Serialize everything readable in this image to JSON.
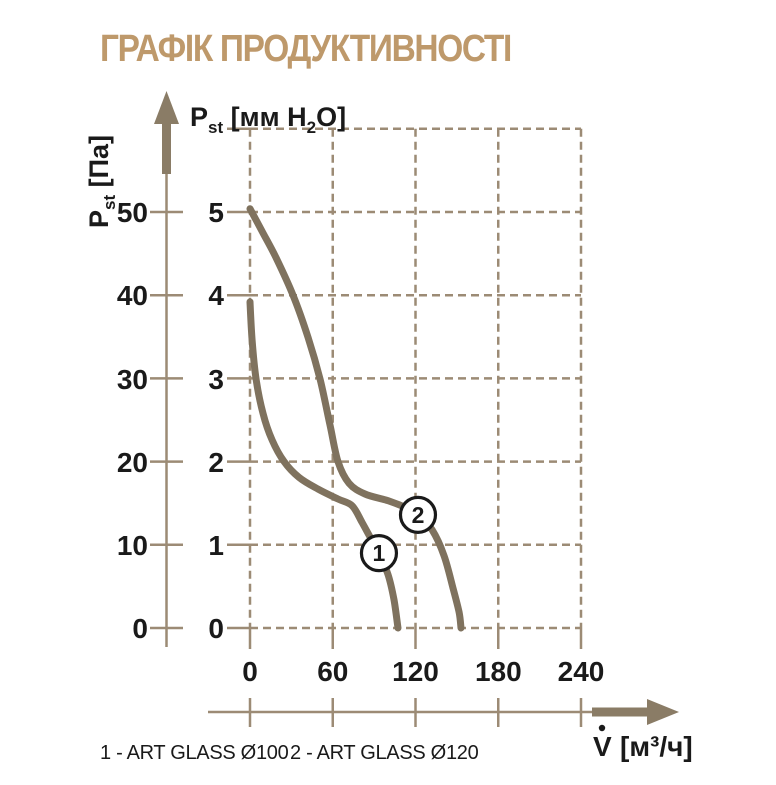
{
  "title": "ГРАФІК ПРОДУКТИВНОСТІ",
  "colors": {
    "title": "#BE996B",
    "curve": "#7F725E",
    "grid": "#9C8B75",
    "arrow": "#8A7C66",
    "text": "#1A1A1A",
    "background": "#FFFFFF"
  },
  "y_axis_left": {
    "name": "P",
    "sub": "st",
    "unit": " [Па]"
  },
  "y_axis_inner": {
    "name": "P",
    "sub": "st",
    "unit_pre": " [мм H",
    "unit_sub": "2",
    "unit_post": "O]"
  },
  "x_axis": {
    "name": "V",
    "unit": "[м³/ч]"
  },
  "legend": {
    "item1": "1 - ART GLASS Ø100",
    "item2": "2 - ART GLASS Ø120"
  },
  "chart_data": {
    "type": "line",
    "title": "ГРАФІК ПРОДУКТИВНОСТІ",
    "xlabel": "V̇ [м³/ч]",
    "ylabel_left": "Pst [Па]",
    "ylabel_inner": "Pst [мм H₂O]",
    "xlim": [
      0,
      240
    ],
    "ylim_mm": [
      0,
      6
    ],
    "ylim_pa": [
      0,
      60
    ],
    "grid": "dashed",
    "x_ticks": [
      0,
      60,
      120,
      180,
      240
    ],
    "y_ticks_pa": [
      0,
      10,
      20,
      30,
      40,
      50
    ],
    "y_ticks_mm": [
      0,
      1,
      2,
      3,
      4,
      5
    ],
    "grid_y_mm": [
      0,
      1,
      2,
      3,
      4,
      5,
      6
    ],
    "series": [
      {
        "name": "ART GLASS Ø100",
        "marker_label": "1",
        "marker_at": [
          93.5,
          0.9
        ],
        "points": [
          [
            0,
            3.92
          ],
          [
            1.5,
            3.46
          ],
          [
            4.4,
            2.99
          ],
          [
            9.4,
            2.58
          ],
          [
            16,
            2.26
          ],
          [
            24.7,
            2.0
          ],
          [
            35.5,
            1.81
          ],
          [
            49.3,
            1.67
          ],
          [
            63.8,
            1.55
          ],
          [
            74,
            1.47
          ],
          [
            81.2,
            1.27
          ],
          [
            88.5,
            1.05
          ],
          [
            93.5,
            0.9
          ],
          [
            100.1,
            0.64
          ],
          [
            104.4,
            0.34
          ],
          [
            107.3,
            0
          ]
        ]
      },
      {
        "name": "ART GLASS Ø120",
        "marker_label": "2",
        "marker_at": [
          121.8,
          1.36
        ],
        "points": [
          [
            0,
            5.04
          ],
          [
            8.7,
            4.77
          ],
          [
            18.9,
            4.45
          ],
          [
            31.2,
            4.0
          ],
          [
            42.1,
            3.49
          ],
          [
            50.8,
            2.99
          ],
          [
            58,
            2.44
          ],
          [
            63.8,
            2.0
          ],
          [
            71.8,
            1.74
          ],
          [
            83.4,
            1.61
          ],
          [
            100.1,
            1.53
          ],
          [
            115.3,
            1.43
          ],
          [
            121.8,
            1.36
          ],
          [
            132,
            1.18
          ],
          [
            140.7,
            0.87
          ],
          [
            147.2,
            0.48
          ],
          [
            151.6,
            0.19
          ],
          [
            153,
            0
          ]
        ]
      }
    ]
  }
}
